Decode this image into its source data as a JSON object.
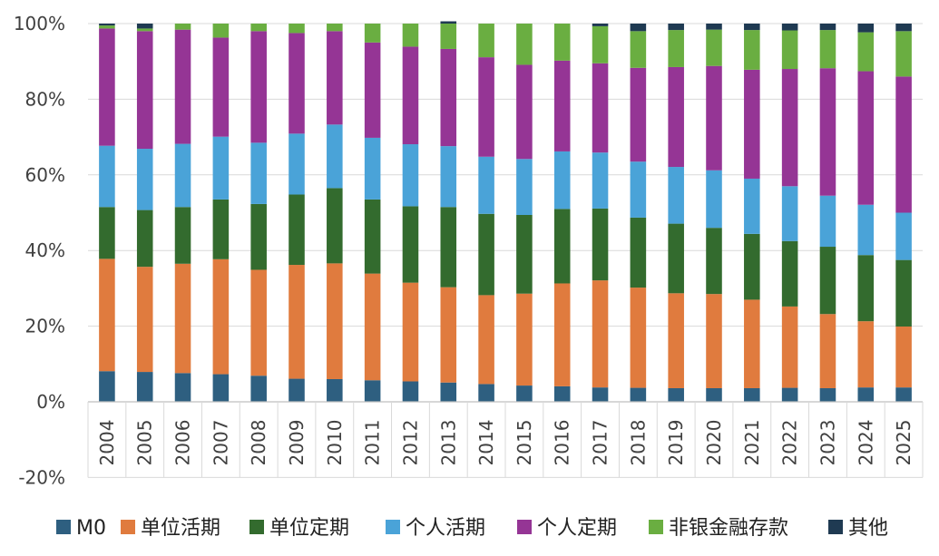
{
  "chart_data": {
    "type": "bar",
    "stacked": true,
    "categories": [
      "2004",
      "2005",
      "2006",
      "2007",
      "2008",
      "2009",
      "2010",
      "2011",
      "2012",
      "2013",
      "2014",
      "2015",
      "2016",
      "2017",
      "2018",
      "2019",
      "2020",
      "2021",
      "2022",
      "2023",
      "2024",
      "2025"
    ],
    "yticks": [
      "-20%",
      "0%",
      "20%",
      "40%",
      "60%",
      "80%",
      "100%"
    ],
    "ylim": [
      -20,
      100
    ],
    "grid": true,
    "legend_position": "bottom",
    "series": [
      {
        "name": "M0",
        "color": "#2E5F80",
        "values": [
          8.1,
          7.9,
          7.6,
          7.3,
          6.9,
          6.1,
          6.0,
          5.7,
          5.4,
          5.1,
          4.7,
          4.3,
          4.1,
          3.8,
          3.7,
          3.6,
          3.6,
          3.6,
          3.7,
          3.6,
          3.8,
          3.8
        ]
      },
      {
        "name": "单位活期",
        "color": "#E07B3E",
        "values": [
          29.7,
          27.8,
          28.9,
          30.4,
          28.0,
          30.1,
          30.6,
          28.2,
          26.1,
          25.2,
          23.5,
          24.3,
          27.2,
          28.3,
          26.5,
          25.1,
          24.9,
          23.4,
          21.5,
          19.6,
          17.5,
          16.1
        ]
      },
      {
        "name": "单位定期",
        "color": "#336B2E",
        "values": [
          13.7,
          15.0,
          15.0,
          15.8,
          17.4,
          18.6,
          19.9,
          19.6,
          20.2,
          21.2,
          21.5,
          20.8,
          19.7,
          19.0,
          18.5,
          18.4,
          17.5,
          17.4,
          17.3,
          17.8,
          17.5,
          17.6
        ]
      },
      {
        "name": "个人活期",
        "color": "#4AA3D8",
        "values": [
          16.2,
          16.2,
          16.7,
          16.6,
          16.2,
          16.1,
          16.8,
          16.3,
          16.4,
          16.1,
          15.1,
          14.8,
          15.2,
          14.8,
          14.8,
          15.0,
          15.2,
          14.6,
          14.5,
          13.5,
          13.3,
          12.5
        ]
      },
      {
        "name": "个人定期",
        "color": "#953595",
        "values": [
          31.0,
          31.1,
          30.2,
          26.2,
          29.5,
          26.6,
          24.7,
          25.2,
          25.8,
          25.7,
          26.3,
          24.9,
          24.0,
          23.6,
          24.8,
          26.4,
          27.6,
          28.8,
          31.0,
          33.7,
          35.3,
          36.0
        ]
      },
      {
        "name": "非银金融存款",
        "color": "#6AAE41",
        "values": [
          0.8,
          0.7,
          1.6,
          3.7,
          2.0,
          2.5,
          2.0,
          5.0,
          6.1,
          6.7,
          8.9,
          10.9,
          9.8,
          9.8,
          9.7,
          9.8,
          9.6,
          10.5,
          10.2,
          10.1,
          10.3,
          12.0
        ]
      },
      {
        "name": "其他",
        "color": "#1F3A52",
        "values": [
          0.5,
          1.3,
          0.0,
          0.0,
          0.0,
          0.0,
          0.0,
          0.0,
          0.0,
          0.6,
          0.0,
          0.0,
          0.0,
          0.7,
          2.0,
          1.7,
          1.6,
          1.7,
          1.8,
          1.7,
          2.3,
          2.0
        ]
      }
    ]
  }
}
